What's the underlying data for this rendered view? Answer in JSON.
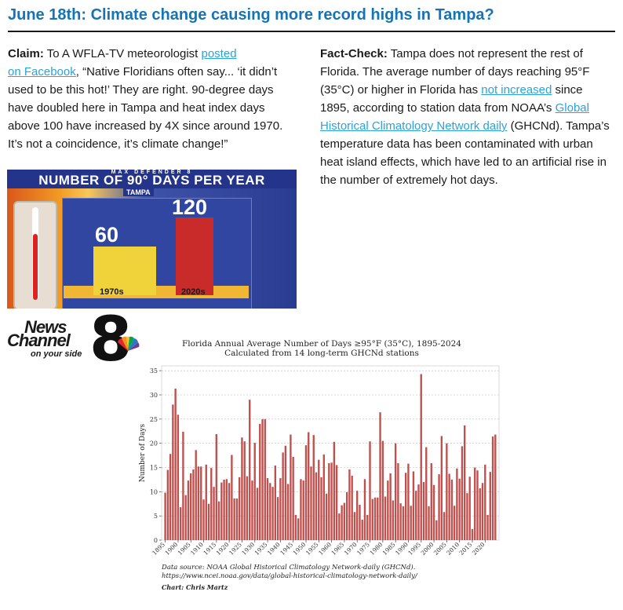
{
  "title": "June 18th: Climate change causing more record highs in Tampa?",
  "claim": {
    "label": "Claim:",
    "text_before_link": "To A WFLA-TV meteorologist",
    "link1": "posted",
    "link2": "on Facebook",
    "text_after_link": ", “Native Floridians often say... ‘it didn’t used to be this hot!’ They are right. 90-degree days have doubled here in Tampa and heat index days above 100 have increased by 4X since around 1970. It’s not a coincidence, it’s climate change!”"
  },
  "factcheck": {
    "label": "Fact-Check:",
    "text1": "Tampa does not represent the rest of Florida. The average number of days reaching 95°F (35°C) or higher in Florida has",
    "link1": "not increased",
    "text2": "since 1895, according to station data from NOAA’s",
    "link2": "Global Historical Climatology Network daily",
    "text3": "(GHCNd). Tampa’s temperature data has been contaminated with urban heat island effects, which have led to an artificial rise in the number of extremely hot days."
  },
  "tv_graphic": {
    "small_label": "MAX DEFENDER 8",
    "heading": "NUMBER OF 90° DAYS PER YEAR",
    "location": "TAMPA",
    "bars": [
      {
        "category": "1970s",
        "value": 60,
        "color": "#f0d23a"
      },
      {
        "category": "2020s",
        "value": 120,
        "color": "#c92a2a"
      }
    ]
  },
  "logo": {
    "news": "News",
    "channel": "Channel",
    "number": "8",
    "tagline": "on your side"
  },
  "chart_data": {
    "type": "bar",
    "title": "Florida Annual Average Number of Days ≥95°F (35°C), 1895-2024",
    "subtitle": "Calculated from 14 long-term GHCNd stations",
    "ylabel": "Number of Days",
    "xlabel": "",
    "ylim": [
      0,
      36
    ],
    "yticks": [
      0,
      5,
      10,
      15,
      20,
      25,
      30,
      35
    ],
    "xticks": [
      1895,
      1900,
      1905,
      1910,
      1915,
      1920,
      1925,
      1930,
      1935,
      1940,
      1945,
      1950,
      1955,
      1960,
      1965,
      1970,
      1975,
      1980,
      1985,
      1990,
      1995,
      2000,
      2005,
      2010,
      2015,
      2020
    ],
    "grid": true,
    "bar_color": "#c0504d",
    "x_start": 1895,
    "values": [
      9.8,
      14.5,
      17.8,
      28.0,
      31.3,
      25.9,
      6.8,
      22.4,
      9.3,
      12.3,
      13.8,
      14.6,
      18.6,
      15.2,
      15.2,
      8.4,
      15.6,
      7.5,
      14.9,
      11.0,
      21.9,
      8.0,
      11.9,
      12.5,
      12.6,
      11.8,
      17.6,
      8.6,
      8.6,
      13.0,
      21.2,
      20.4,
      13.2,
      29.0,
      12.3,
      20.1,
      10.8,
      24.0,
      25.0,
      25.0,
      12.8,
      11.8,
      11.0,
      15.4,
      8.9,
      12.8,
      18.1,
      19.5,
      11.6,
      21.8,
      17.2,
      5.2,
      4.5,
      12.6,
      12.3,
      19.6,
      22.3,
      15.2,
      21.7,
      14.0,
      16.6,
      13.0,
      17.7,
      9.6,
      15.9,
      16.0,
      20.3,
      15.5,
      5.5,
      7.2,
      7.7,
      9.9,
      14.6,
      13.3,
      5.8,
      10.2,
      7.3,
      4.2,
      12.6,
      5.2,
      20.4,
      8.5,
      8.8,
      8.8,
      26.4,
      20.5,
      9.0,
      12.3,
      13.8,
      8.2,
      20.0,
      15.9,
      7.6,
      7.0,
      13.9,
      15.8,
      7.1,
      14.2,
      10.2,
      11.5,
      34.3,
      12.0,
      19.2,
      7.0,
      15.9,
      11.4,
      4.1,
      13.6,
      21.5,
      5.8,
      20.0,
      13.7,
      12.5,
      7.1,
      14.8,
      12.7,
      19.4,
      23.7,
      9.7,
      13.1,
      2.3,
      15.0,
      14.4,
      10.7,
      11.8,
      15.6,
      5.2,
      14.1,
      21.4,
      21.8
    ],
    "source_line1": "Data source: NOAA Global Historical Climatology Network-daily (GHCNd).",
    "source_line2": "https://www.ncei.noaa.gov/data/global-historical-climatology-network-daily/",
    "author": "Chart: Chris Martz"
  }
}
